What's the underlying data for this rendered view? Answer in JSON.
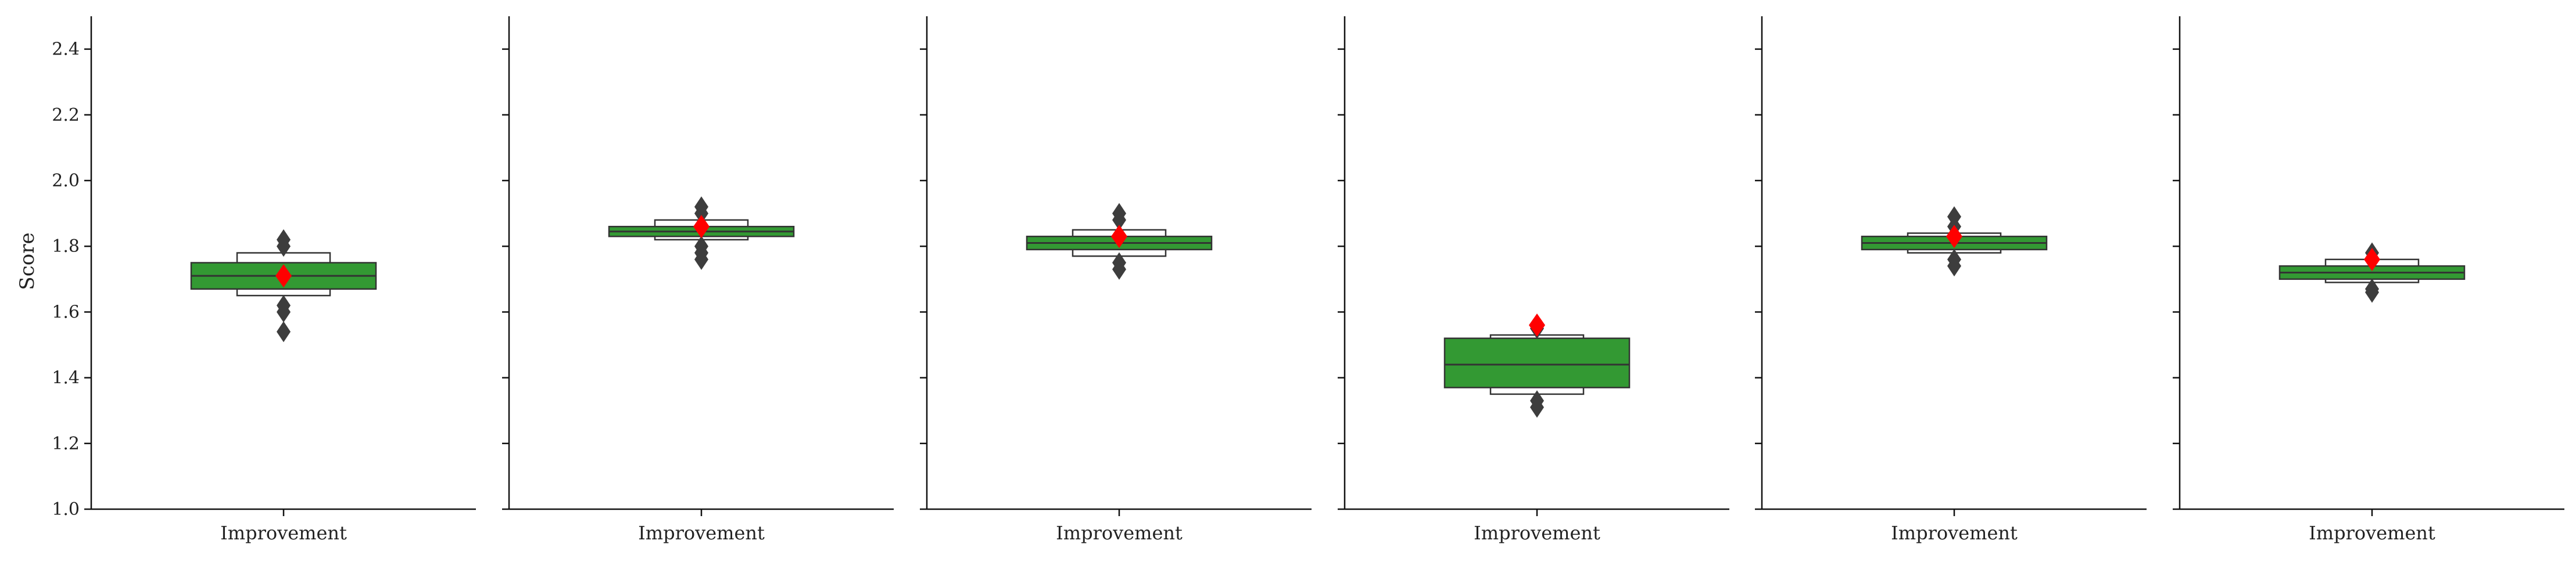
{
  "chart_data": {
    "type": "boxenplot",
    "ylabel": "Score",
    "ylim": [
      1.0,
      2.5
    ],
    "yticks": [
      "1.0",
      "1.2",
      "1.4",
      "1.6",
      "1.8",
      "2.0",
      "2.2",
      "2.4"
    ],
    "grid": false,
    "shared_y": true,
    "colors": {
      "box": "#339933",
      "box_edge": "#333333",
      "outer_box": "#ffffff",
      "outlier": "#3d3d3d",
      "mean_marker": "#ff0000"
    },
    "panels": [
      {
        "category": "Improvement",
        "box": [
          1.67,
          1.75
        ],
        "median": 1.71,
        "outer": [
          1.65,
          1.78
        ],
        "outliers": [
          1.82,
          1.8,
          1.62,
          1.6,
          1.54
        ],
        "mean": 1.71
      },
      {
        "category": "Improvement",
        "box": [
          1.83,
          1.86
        ],
        "median": 1.845,
        "outer": [
          1.82,
          1.88
        ],
        "outliers": [
          1.92,
          1.9,
          1.8,
          1.78,
          1.76
        ],
        "mean": 1.86
      },
      {
        "category": "Improvement",
        "box": [
          1.79,
          1.83
        ],
        "median": 1.81,
        "outer": [
          1.77,
          1.85
        ],
        "outliers": [
          1.9,
          1.88,
          1.75,
          1.73
        ],
        "mean": 1.83
      },
      {
        "category": "Improvement",
        "box": [
          1.37,
          1.52
        ],
        "median": 1.44,
        "outer": [
          1.35,
          1.53
        ],
        "outliers": [
          1.55,
          1.33,
          1.31
        ],
        "mean": 1.56
      },
      {
        "category": "Improvement",
        "box": [
          1.79,
          1.83
        ],
        "median": 1.81,
        "outer": [
          1.78,
          1.84
        ],
        "outliers": [
          1.89,
          1.86,
          1.76,
          1.74
        ],
        "mean": 1.83
      },
      {
        "category": "Improvement",
        "box": [
          1.7,
          1.74
        ],
        "median": 1.72,
        "outer": [
          1.69,
          1.76
        ],
        "outliers": [
          1.78,
          1.67,
          1.66
        ],
        "mean": 1.76
      }
    ]
  }
}
